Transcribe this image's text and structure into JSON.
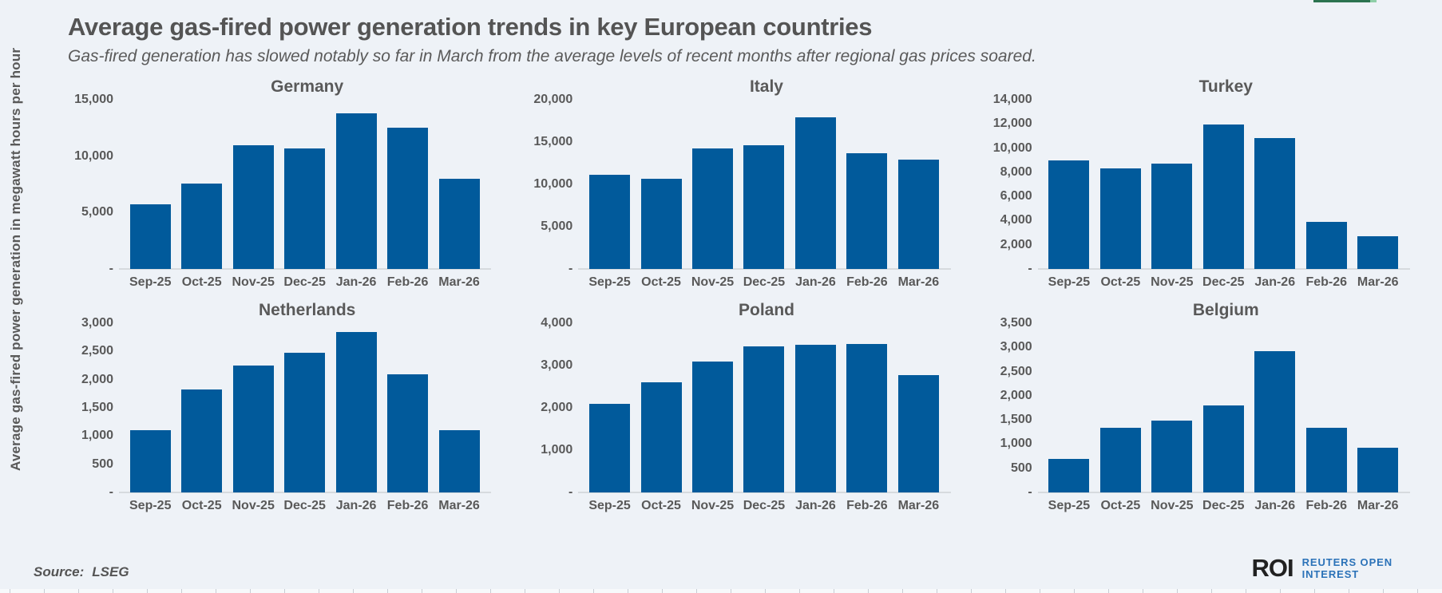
{
  "page": {
    "title": "Average gas-fired power generation trends in key European countries",
    "subtitle": "Gas-fired generation has slowed notably so far in March from the average levels of recent months after regional gas prices soared.",
    "y_axis_label": "Average gas-fired power generation in megawatt hours per hour",
    "source_label": "Source:",
    "source_value": "LSEG",
    "logo": {
      "mark": "ROI",
      "line1": "REUTERS OPEN",
      "line2": "INTEREST"
    }
  },
  "colors": {
    "bar": "#015a9b",
    "background": "#eef2f7",
    "accent_green": "#2b7350",
    "accent_green_light": "#8fcfa8",
    "logo_blue": "#2b72b8"
  },
  "chart_data": [
    {
      "type": "bar",
      "title": "Germany",
      "categories": [
        "Sep-25",
        "Oct-25",
        "Nov-25",
        "Dec-25",
        "Jan-26",
        "Feb-26",
        "Mar-26"
      ],
      "values": [
        5700,
        7600,
        11000,
        10650,
        13800,
        12550,
        8000
      ],
      "xlabel": "",
      "ylabel": "Average gas-fired power generation in megawatt hours per hour",
      "ylim": [
        0,
        15000
      ],
      "yticks": [
        15000,
        10000,
        5000,
        0
      ],
      "ytick_labels": [
        "15,000",
        "10,000",
        "5,000",
        "-"
      ],
      "grid": false,
      "legend": "none"
    },
    {
      "type": "bar",
      "title": "Italy",
      "categories": [
        "Sep-25",
        "Oct-25",
        "Nov-25",
        "Dec-25",
        "Jan-26",
        "Feb-26",
        "Mar-26"
      ],
      "values": [
        11100,
        10700,
        14200,
        14650,
        17900,
        13650,
        12900
      ],
      "xlabel": "",
      "ylabel": "Average gas-fired power generation in megawatt hours per hour",
      "ylim": [
        0,
        20000
      ],
      "yticks": [
        20000,
        15000,
        10000,
        5000,
        0
      ],
      "ytick_labels": [
        "20,000",
        "15,000",
        "10,000",
        "5,000",
        "-"
      ],
      "grid": false,
      "legend": "none"
    },
    {
      "type": "bar",
      "title": "Turkey",
      "categories": [
        "Sep-25",
        "Oct-25",
        "Nov-25",
        "Dec-25",
        "Jan-26",
        "Feb-26",
        "Mar-26"
      ],
      "values": [
        9000,
        8300,
        8700,
        11950,
        10850,
        3900,
        2700
      ],
      "xlabel": "",
      "ylabel": "Average gas-fired power generation in megawatt hours per hour",
      "ylim": [
        0,
        14000
      ],
      "yticks": [
        14000,
        12000,
        10000,
        8000,
        6000,
        4000,
        2000,
        0
      ],
      "ytick_labels": [
        "14,000",
        "12,000",
        "10,000",
        "8,000",
        "6,000",
        "4,000",
        "2,000",
        "-"
      ],
      "grid": false,
      "legend": "none"
    },
    {
      "type": "bar",
      "title": "Netherlands",
      "categories": [
        "Sep-25",
        "Oct-25",
        "Nov-25",
        "Dec-25",
        "Jan-26",
        "Feb-26",
        "Mar-26"
      ],
      "values": [
        1100,
        1830,
        2250,
        2470,
        2840,
        2100,
        1100
      ],
      "xlabel": "",
      "ylabel": "Average gas-fired power generation in megawatt hours per hour",
      "ylim": [
        0,
        3000
      ],
      "yticks": [
        3000,
        2500,
        2000,
        1500,
        1000,
        500,
        0
      ],
      "ytick_labels": [
        "3,000",
        "2,500",
        "2,000",
        "1,500",
        "1,000",
        "500",
        "-"
      ],
      "grid": false,
      "legend": "none"
    },
    {
      "type": "bar",
      "title": "Poland",
      "categories": [
        "Sep-25",
        "Oct-25",
        "Nov-25",
        "Dec-25",
        "Jan-26",
        "Feb-26",
        "Mar-26"
      ],
      "values": [
        2100,
        2600,
        3100,
        3450,
        3490,
        3510,
        2780
      ],
      "xlabel": "",
      "ylabel": "Average gas-fired power generation in megawatt hours per hour",
      "ylim": [
        0,
        4000
      ],
      "yticks": [
        4000,
        3000,
        2000,
        1000,
        0
      ],
      "ytick_labels": [
        "4,000",
        "3,000",
        "2,000",
        "1,000",
        "-"
      ],
      "grid": false,
      "legend": "none"
    },
    {
      "type": "bar",
      "title": "Belgium",
      "categories": [
        "Sep-25",
        "Oct-25",
        "Nov-25",
        "Dec-25",
        "Jan-26",
        "Feb-26",
        "Mar-26"
      ],
      "values": [
        700,
        1340,
        1490,
        1800,
        2930,
        1330,
        920
      ],
      "xlabel": "",
      "ylabel": "Average gas-fired power generation in megawatt hours per hour",
      "ylim": [
        0,
        3500
      ],
      "yticks": [
        3500,
        3000,
        2500,
        2000,
        1500,
        1000,
        500,
        0
      ],
      "ytick_labels": [
        "3,500",
        "3,000",
        "2,500",
        "2,000",
        "1,500",
        "1,000",
        "500",
        "-"
      ],
      "grid": false,
      "legend": "none"
    }
  ]
}
